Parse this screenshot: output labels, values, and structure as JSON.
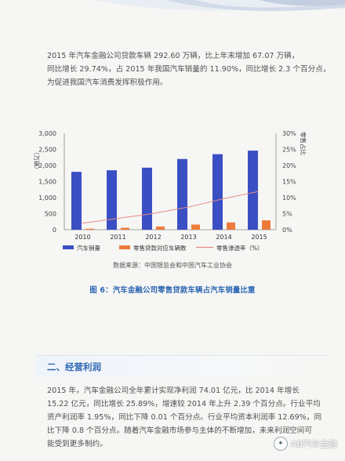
{
  "paragraph1": [
    "2015 年汽车金融公司贷款车辆 292.60 万辆，比上年末增加 67.07 万辆，",
    "同比增长 29.74%，占 2015 年我国汽车销量的 11.90%，同比增长 2.3 个百分点，",
    "为促进我国汽车消费发挥积极作用。"
  ],
  "chart_data": {
    "type": "bar",
    "categories": [
      "2010",
      "2011",
      "2012",
      "2013",
      "2014",
      "2015"
    ],
    "series": [
      {
        "name": "汽车销量",
        "axis": "left",
        "kind": "bar",
        "color": "#3a4fc4",
        "values": [
          1800,
          1850,
          1930,
          2200,
          2350,
          2460
        ]
      },
      {
        "name": "零售贷款对应车辆数",
        "axis": "left",
        "kind": "bar",
        "color": "#ee7a3c",
        "values": [
          30,
          60,
          100,
          160,
          225,
          292
        ]
      },
      {
        "name": "零售渗透率（%）",
        "axis": "right",
        "kind": "line",
        "color": "#e88a86",
        "values": [
          2,
          3.5,
          5,
          7,
          9.6,
          11.9
        ]
      }
    ],
    "ylabel_left": "（万辆）",
    "ylabel_right": "零售占比",
    "ylim_left": [
      0,
      3000
    ],
    "ylim_right": [
      0,
      30
    ],
    "yticks_left": [
      "0",
      "500",
      "1,000",
      "1,500",
      "2,000",
      "2,500",
      "3,000"
    ],
    "yticks_right": [
      "0%",
      "5%",
      "10%",
      "15%",
      "20%",
      "25%",
      "30%"
    ],
    "grid": false,
    "legend_position": "bottom"
  },
  "source_note": "数据来源：中国银监会和中国汽车工业协会",
  "figure_caption": "图 6：汽车金融公司零售贷款车辆占汽车销量比重",
  "section_title": "二、经营利润",
  "paragraph2": [
    "2015 年，汽车金融公司全年累计实现净利润 74.01 亿元，比 2014 年增长",
    "15.22 亿元，同比增长 25.89%，增速较 2014 年上升 2.39 个百分点。行业平均",
    "资产利润率 1.95%，同比下降 0.01 个百分点。行业平均资本利润率 12.69%，同",
    "比下降 0.8 个百分点。随着汽车金融市场参与主体的不断增加，未来利润空间可",
    "能受到更多制约。"
  ],
  "watermark": "AB汽车金融"
}
